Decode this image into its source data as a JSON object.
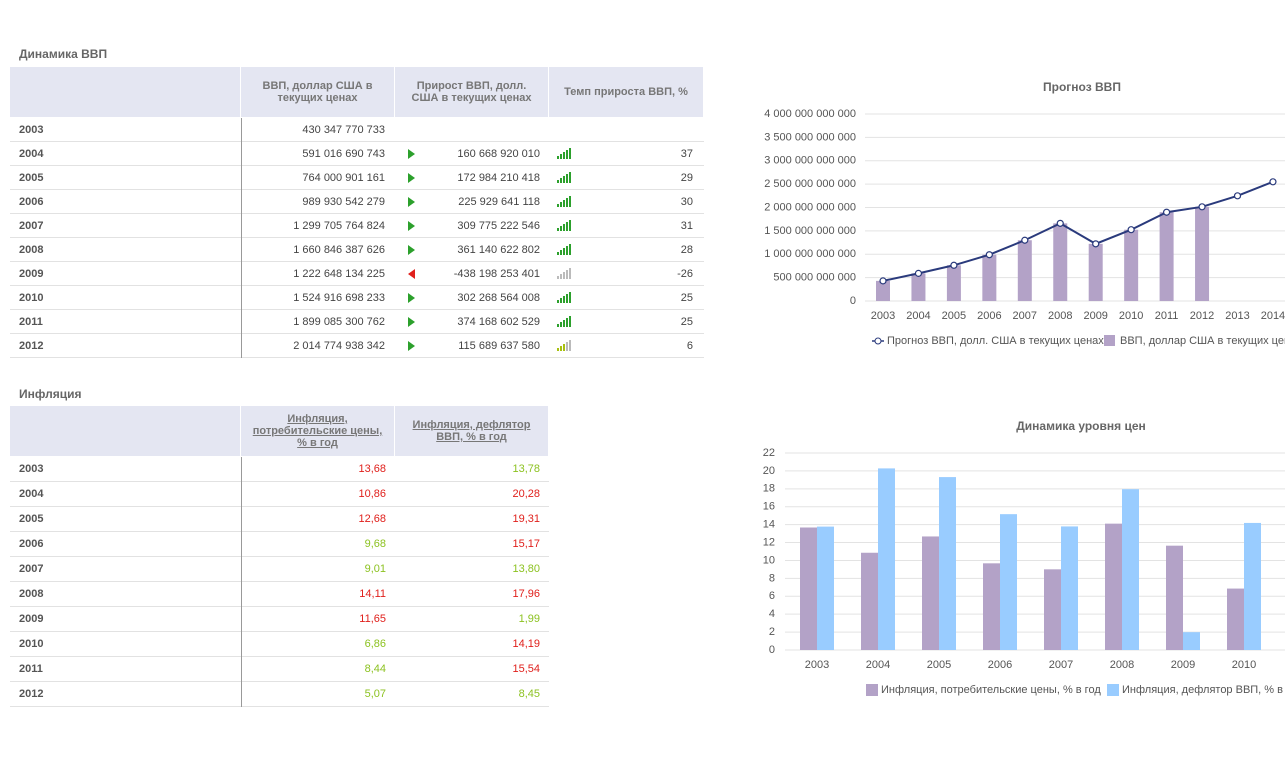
{
  "tables": [
    {
      "title": "Динамика ВВП",
      "columns": [
        null,
        "ВВП, доллар США в текущих ценах",
        "Прирост ВВП, долл. США в текущих ценах",
        "Темп прироста ВВП, %"
      ],
      "rows": [
        [
          "2003",
          "430 347 770 733",
          null,
          null
        ],
        [
          "2004",
          "591 016 690 743",
          "160 668 920 010",
          37
        ],
        [
          "2005",
          "764 000 901 161",
          "172 984 210 418",
          29
        ],
        [
          "2006",
          "989 930 542 279",
          "225 929 641 118",
          30
        ],
        [
          "2007",
          "1 299 705 764 824",
          "309 775 222 546",
          31
        ],
        [
          "2008",
          "1 660 846 387 626",
          "361 140 622 802",
          28
        ],
        [
          "2009",
          "1 222 648 134 225",
          "-438 198 253 401",
          -26
        ],
        [
          "2010",
          "1 524 916 698 233",
          "302 268 564 008",
          25
        ],
        [
          "2011",
          "1 899 085 300 762",
          "374 168 602 529",
          25
        ],
        [
          "2012",
          "2 014 774 938 342",
          "115 689 637 580",
          6
        ]
      ]
    },
    {
      "title": "Инфляция",
      "columns": [
        null,
        "Инфляция, потребительские цены, % в год",
        "Инфляция, дефлятор ВВП, % в год"
      ],
      "rows": [
        [
          "2003",
          "13,68",
          "13,78"
        ],
        [
          "2004",
          "10,86",
          "20,28"
        ],
        [
          "2005",
          "12,68",
          "19,31"
        ],
        [
          "2006",
          "9,68",
          "15,17"
        ],
        [
          "2007",
          "9,01",
          "13,80"
        ],
        [
          "2008",
          "14,11",
          "17,96"
        ],
        [
          "2009",
          "11,65",
          "1,99"
        ],
        [
          "2010",
          "6,86",
          "14,19"
        ],
        [
          "2011",
          "8,44",
          "15,54"
        ],
        [
          "2012",
          "5,07",
          "8,45"
        ]
      ],
      "cell_colors": [
        [
          "#e0201c",
          "#8cc220"
        ],
        [
          "#e0201c",
          "#e0201c"
        ],
        [
          "#e0201c",
          "#e0201c"
        ],
        [
          "#8cc220",
          "#e0201c"
        ],
        [
          "#8cc220",
          "#8cc220"
        ],
        [
          "#e0201c",
          "#e0201c"
        ],
        [
          "#e0201c",
          "#8cc220"
        ],
        [
          "#8cc220",
          "#e0201c"
        ],
        [
          "#8cc220",
          "#e0201c"
        ],
        [
          "#8cc220",
          "#8cc220"
        ]
      ]
    }
  ],
  "chart_data": [
    {
      "type": "combo",
      "title": "Прогноз ВВП",
      "categories": [
        "2003",
        "2004",
        "2005",
        "2006",
        "2007",
        "2008",
        "2009",
        "2010",
        "2011",
        "2012",
        "2013",
        "2014"
      ],
      "series": [
        {
          "name": "Прогноз ВВП, долл. США в текущих ценах",
          "type": "line",
          "color": "#2a3a7c",
          "values": [
            430347770733,
            591016690743,
            764000901161,
            989930542279,
            1299705764824,
            1660846387626,
            1222648134225,
            1524916698233,
            1899085300762,
            2014774938342,
            2250000000000,
            2550000000000
          ]
        },
        {
          "name": "ВВП, доллар США в текущих ценах",
          "type": "bar",
          "color": "#b3a2c7",
          "values": [
            430347770733,
            591016690743,
            764000901161,
            989930542279,
            1299705764824,
            1660846387626,
            1222648134225,
            1524916698233,
            1899085300762,
            2014774938342,
            null,
            null
          ]
        }
      ],
      "ylim": [
        0,
        4000000000000
      ],
      "yticks": [
        0,
        {
          "value": 500000000000,
          "label": "500 000 000 000"
        },
        {
          "value": 1000000000000,
          "label": "1 000 000 000 000"
        },
        {
          "value": 1500000000000,
          "label": "1 500 000 000 000"
        },
        {
          "value": 2000000000000,
          "label": "2 000 000 000 000"
        },
        {
          "value": 2500000000000,
          "label": "2 500 000 000 000"
        },
        {
          "value": 3000000000000,
          "label": "3 000 000 000 000"
        },
        {
          "value": 3500000000000,
          "label": "3 500 000 000 000"
        },
        {
          "value": 4000000000000,
          "label": "4 000 000 000 000"
        }
      ],
      "grid": true
    },
    {
      "type": "bar",
      "title": "Динамика уровня цен",
      "categories": [
        "2003",
        "2004",
        "2005",
        "2006",
        "2007",
        "2008",
        "2009",
        "2010"
      ],
      "series": [
        {
          "name": "Инфляция, потребительские цены, % в год",
          "color": "#b3a2c7",
          "values": [
            13.68,
            10.86,
            12.68,
            9.68,
            9.01,
            14.11,
            11.65,
            6.86
          ]
        },
        {
          "name": "Инфляция, дефлятор ВВП, % в год",
          "color": "#99ccff",
          "values": [
            13.78,
            20.28,
            19.31,
            15.17,
            13.8,
            17.96,
            1.99,
            14.19
          ]
        }
      ],
      "ylim": [
        0,
        22
      ],
      "yticks": [
        0,
        2,
        4,
        6,
        8,
        10,
        12,
        14,
        16,
        18,
        20,
        22
      ],
      "grid": true
    }
  ]
}
